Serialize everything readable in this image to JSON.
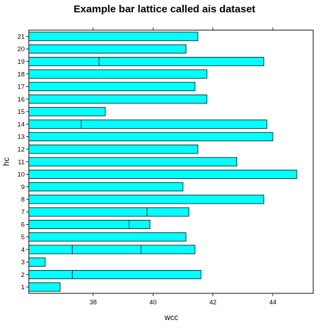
{
  "chart_data": {
    "type": "bar",
    "orientation": "horizontal",
    "title": "Example bar lattice called ais dataset",
    "xlabel": "wcc",
    "ylabel": "hc",
    "categories": [
      "1",
      "2",
      "3",
      "4",
      "5",
      "6",
      "7",
      "8",
      "9",
      "10",
      "11",
      "12",
      "13",
      "14",
      "15",
      "16",
      "17",
      "18",
      "19",
      "20",
      "21"
    ],
    "values": [
      36.9,
      41.6,
      36.4,
      41.4,
      41.1,
      39.9,
      41.2,
      43.7,
      41.0,
      44.8,
      42.8,
      41.5,
      44.0,
      43.8,
      38.4,
      41.8,
      41.4,
      41.8,
      43.7,
      41.1,
      41.5
    ],
    "segment_dividers": [
      {
        "category": "2",
        "at": [
          37.3
        ]
      },
      {
        "category": "4",
        "at": [
          37.3,
          39.6
        ]
      },
      {
        "category": "6",
        "at": [
          39.2
        ]
      },
      {
        "category": "7",
        "at": [
          39.8
        ]
      },
      {
        "category": "14",
        "at": [
          37.6
        ]
      },
      {
        "category": "19",
        "at": [
          38.2
        ]
      }
    ],
    "xticks": [
      38,
      40,
      42,
      44
    ],
    "xlim": [
      35.85,
      45.35
    ],
    "bar_origin": 35.85,
    "grid": false,
    "colors": {
      "bar_fill": "#00FFFF",
      "bar_stroke": "#000000",
      "axis": "#000000"
    }
  }
}
